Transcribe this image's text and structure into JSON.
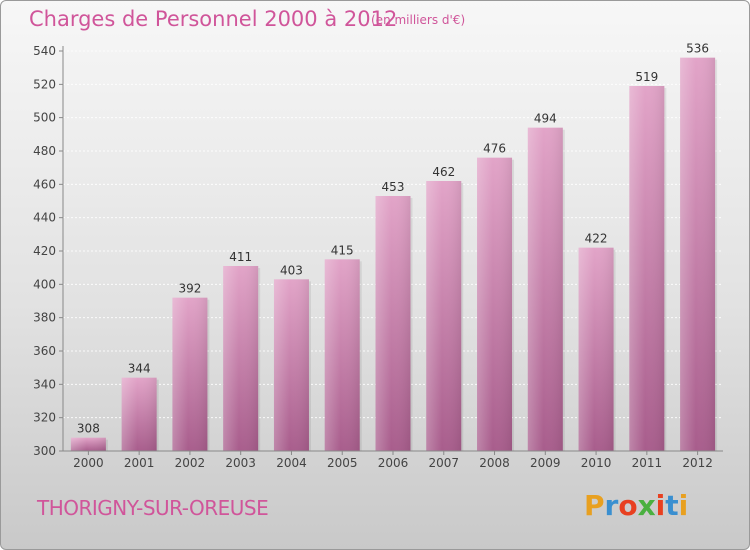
{
  "header": {
    "title": "Charges de Personnel 2000 à 2012",
    "subtitle": "(en milliers d'€)"
  },
  "footer": {
    "place": "THORIGNY-SUR-OREUSE",
    "logo_text": "Proxiti",
    "logo_colors": [
      "#e8a020",
      "#3a8fd0",
      "#e84020",
      "#4ab040",
      "#e84020",
      "#3a8fd0",
      "#e8a020"
    ]
  },
  "colors": {
    "bar": "#c97aa8",
    "bar_top": "#e2a4c8",
    "bar_bottom": "#a85d8c",
    "text": "#d0559a",
    "axis": "#888888"
  },
  "chart_data": {
    "type": "bar",
    "categories": [
      "2000",
      "2001",
      "2002",
      "2003",
      "2004",
      "2005",
      "2006",
      "2007",
      "2008",
      "2009",
      "2010",
      "2011",
      "2012"
    ],
    "values": [
      308,
      344,
      392,
      411,
      403,
      415,
      453,
      462,
      476,
      494,
      422,
      519,
      536
    ],
    "yticks": [
      300,
      320,
      340,
      360,
      380,
      400,
      420,
      440,
      460,
      480,
      500,
      520,
      540
    ],
    "ylim": [
      300,
      540
    ],
    "grid": true
  }
}
